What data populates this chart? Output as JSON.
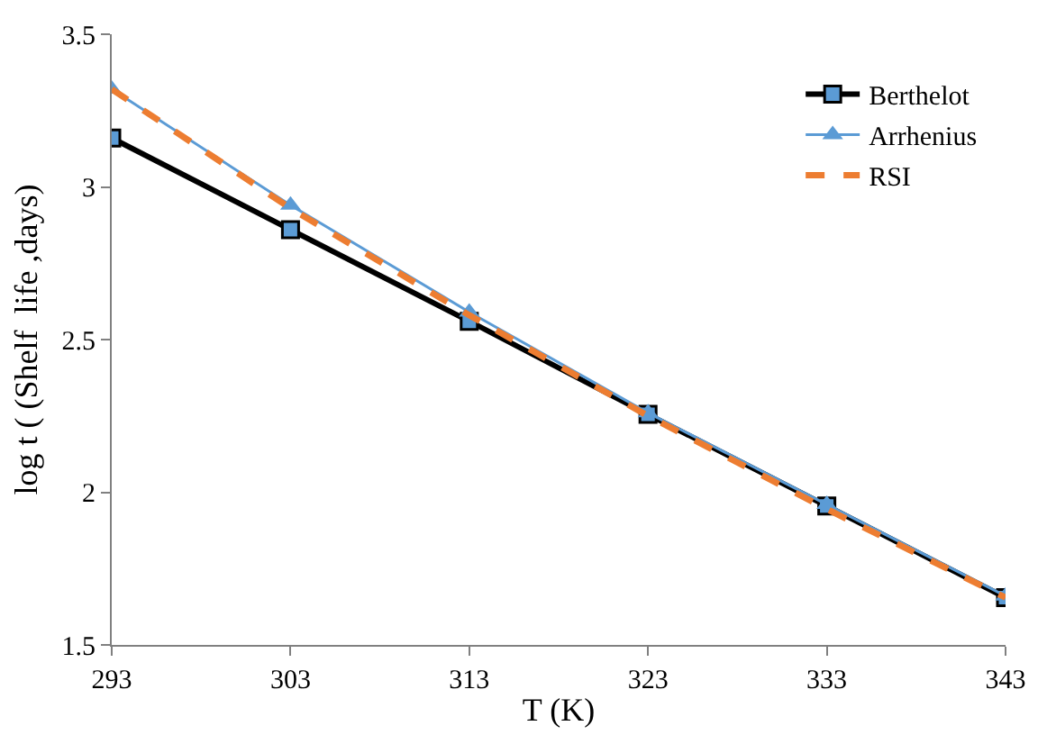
{
  "chart_data": {
    "type": "line",
    "xlabel": "T (K)",
    "ylabel": "log t ( (Shelf  life ,days)",
    "x": [
      293,
      303,
      313,
      323,
      333,
      343
    ],
    "series": [
      {
        "name": "Berthelot",
        "color": "#000000",
        "marker": "square",
        "line_style": "solid",
        "values": [
          3.16,
          2.86,
          2.56,
          2.255,
          1.955,
          1.655
        ]
      },
      {
        "name": "Arrhenius",
        "color": "#5b9bd5",
        "marker": "triangle",
        "line_style": "solid",
        "values": [
          3.32,
          2.94,
          2.59,
          2.26,
          1.96,
          1.66
        ]
      },
      {
        "name": "RSI",
        "color": "#ed7d31",
        "marker": "none",
        "line_style": "dashed",
        "values": [
          3.32,
          2.93,
          2.58,
          2.25,
          1.945,
          1.655
        ]
      }
    ],
    "xlim": [
      293,
      343
    ],
    "xticks": [
      293,
      303,
      313,
      323,
      333,
      343
    ],
    "ylim": [
      1.5,
      3.5
    ],
    "yticks": [
      1.5,
      2,
      2.5,
      3,
      3.5
    ],
    "legend": "top right"
  }
}
